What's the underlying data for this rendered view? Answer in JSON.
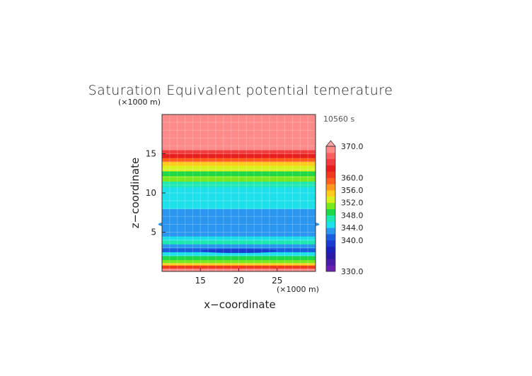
{
  "chart_data": {
    "type": "heatmap",
    "title": "Saturation Equivalent potential temerature",
    "time_label": "10560 s",
    "xlabel": "x−coordinate",
    "ylabel": "z−coordinate",
    "x_unit_label": "(×1000 m)",
    "y_unit_label": "(×1000 m)",
    "xlim": [
      10,
      30
    ],
    "ylim": [
      0,
      20
    ],
    "x_ticks": [
      15,
      20,
      25
    ],
    "y_ticks": [
      5,
      10,
      15
    ],
    "grid": true,
    "colorbar": {
      "min": 330,
      "max": 370,
      "labels": [
        330.0,
        340.0,
        344.0,
        348.0,
        352.0,
        356.0,
        360.0,
        370.0
      ],
      "label_texts": [
        "330.0",
        "340.0",
        "344.0",
        "348.0",
        "352.0",
        "356.0",
        "360.0",
        "370.0"
      ],
      "extend": "max",
      "levels": [
        {
          "value": 330,
          "color": "#6a1fb0"
        },
        {
          "value": 332,
          "color": "#4a1aa8"
        },
        {
          "value": 334,
          "color": "#2a1aa8"
        },
        {
          "value": 336,
          "color": "#1a22b8"
        },
        {
          "value": 338,
          "color": "#1a3ad0"
        },
        {
          "value": 340,
          "color": "#1a5ee0"
        },
        {
          "value": 342,
          "color": "#2a96f0"
        },
        {
          "value": 344,
          "color": "#1ee0ea"
        },
        {
          "value": 346,
          "color": "#1ee8b0"
        },
        {
          "value": 348,
          "color": "#1ed848"
        },
        {
          "value": 350,
          "color": "#78e81e"
        },
        {
          "value": 352,
          "color": "#d8f01e"
        },
        {
          "value": 354,
          "color": "#ffcc1e"
        },
        {
          "value": 356,
          "color": "#ff961e"
        },
        {
          "value": 358,
          "color": "#ff5e1e"
        },
        {
          "value": 360,
          "color": "#f03a1e"
        },
        {
          "value": 362,
          "color": "#e81e1e"
        },
        {
          "value": 364,
          "color": "#f03c3c"
        },
        {
          "value": 366,
          "color": "#f86060"
        },
        {
          "value": 368,
          "color": "#ff8a8a"
        },
        {
          "value": 370,
          "color": "#ffa4a4"
        }
      ]
    },
    "z_profile": [
      {
        "z": 0.0,
        "value": 369
      },
      {
        "z": 0.4,
        "value": 361
      },
      {
        "z": 0.8,
        "value": 355
      },
      {
        "z": 1.1,
        "value": 351
      },
      {
        "z": 1.5,
        "value": 348
      },
      {
        "z": 2.0,
        "value": 345
      },
      {
        "z": 2.5,
        "value": 341
      },
      {
        "z": 3.0,
        "value": 343
      },
      {
        "z": 3.5,
        "value": 346
      },
      {
        "z": 4.0,
        "value": 344
      },
      {
        "z": 4.5,
        "value": 342.5
      },
      {
        "z": 5.0,
        "value": 343
      },
      {
        "z": 6.0,
        "value": 343.5
      },
      {
        "z": 7.0,
        "value": 343.5
      },
      {
        "z": 8.0,
        "value": 344
      },
      {
        "z": 9.0,
        "value": 344
      },
      {
        "z": 10.0,
        "value": 344.5
      },
      {
        "z": 10.8,
        "value": 346
      },
      {
        "z": 11.5,
        "value": 350
      },
      {
        "z": 12.2,
        "value": 348
      },
      {
        "z": 12.8,
        "value": 352
      },
      {
        "z": 13.5,
        "value": 355
      },
      {
        "z": 14.0,
        "value": 358
      },
      {
        "z": 14.5,
        "value": 362
      },
      {
        "z": 15.0,
        "value": 364
      },
      {
        "z": 15.5,
        "value": 368
      },
      {
        "z": 20.0,
        "value": 370
      }
    ],
    "blobs": [
      {
        "x": 20,
        "z": 7.2,
        "rx": 2.0,
        "rz": 0.25,
        "value": 342
      },
      {
        "x": 20,
        "z": 4.9,
        "rx": 6.5,
        "rz": 0.4,
        "value": 342
      },
      {
        "x": 11,
        "z": 6.0,
        "rx": 1.5,
        "rz": 0.3,
        "value": 342
      },
      {
        "x": 29,
        "z": 6.0,
        "rx": 1.5,
        "rz": 0.3,
        "value": 342
      },
      {
        "x": 20,
        "z": 2.6,
        "rx": 5.0,
        "rz": 0.25,
        "value": 338
      }
    ]
  }
}
